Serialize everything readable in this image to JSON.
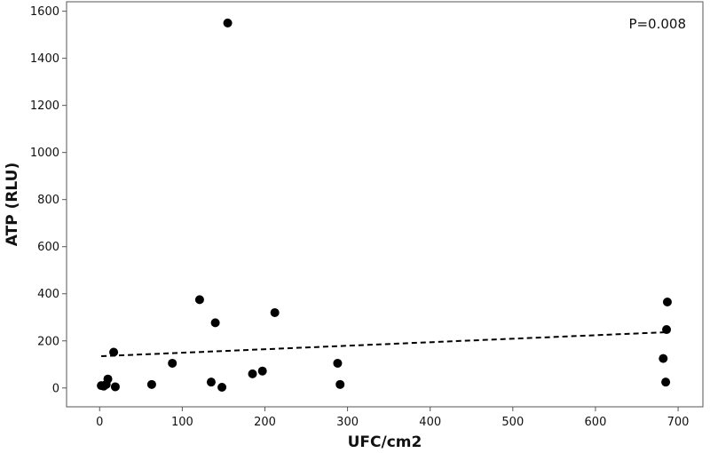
{
  "chart_data": {
    "type": "scatter",
    "title": "",
    "xlabel": "UFC/cm2",
    "ylabel": "ATP (RLU)",
    "xlim": [
      -40,
      730
    ],
    "ylim": [
      -80,
      1640
    ],
    "xticks": [
      0,
      100,
      200,
      300,
      400,
      500,
      600,
      700
    ],
    "yticks": [
      0,
      200,
      400,
      600,
      800,
      1000,
      1200,
      1400,
      1600
    ],
    "grid": false,
    "annotation": "P=0.008",
    "points": [
      {
        "x": 2,
        "y": 10
      },
      {
        "x": 5,
        "y": 8
      },
      {
        "x": 8,
        "y": 15
      },
      {
        "x": 10,
        "y": 38
      },
      {
        "x": 17,
        "y": 152
      },
      {
        "x": 19,
        "y": 5
      },
      {
        "x": 63,
        "y": 15
      },
      {
        "x": 88,
        "y": 105
      },
      {
        "x": 121,
        "y": 375
      },
      {
        "x": 135,
        "y": 25
      },
      {
        "x": 140,
        "y": 277
      },
      {
        "x": 148,
        "y": 3
      },
      {
        "x": 155,
        "y": 1550
      },
      {
        "x": 185,
        "y": 60
      },
      {
        "x": 197,
        "y": 72
      },
      {
        "x": 212,
        "y": 320
      },
      {
        "x": 288,
        "y": 105
      },
      {
        "x": 291,
        "y": 15
      },
      {
        "x": 682,
        "y": 125
      },
      {
        "x": 685,
        "y": 25
      },
      {
        "x": 686,
        "y": 248
      },
      {
        "x": 687,
        "y": 365
      }
    ],
    "trendline": {
      "style": "dashed",
      "x": [
        2,
        687
      ],
      "y": [
        135,
        237
      ]
    }
  }
}
